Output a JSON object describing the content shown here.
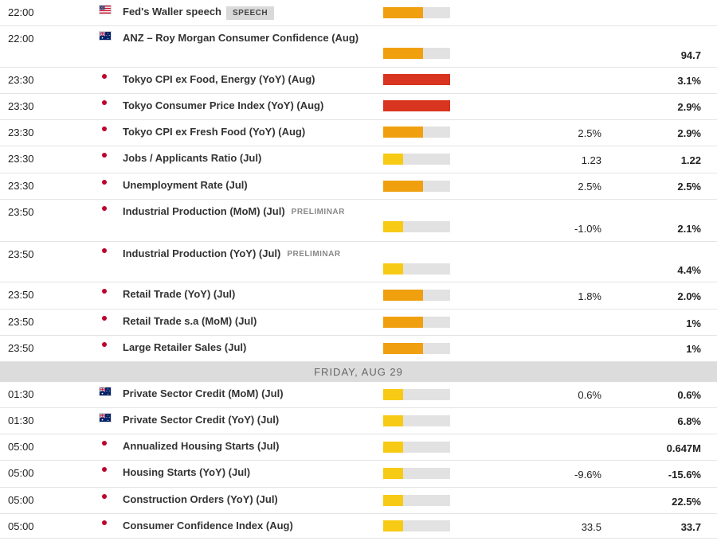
{
  "colors": {
    "high": "#d9341f",
    "medium": "#f0a00f",
    "low": "#f7cb15",
    "empty": "#e2e2e2"
  },
  "day_header": "FRIDAY, AUG 29",
  "events": [
    {
      "time": "22:00",
      "country": "us",
      "country_icon": "us-flag-icon",
      "title": "Fed's Waller speech",
      "badge": "SPEECH",
      "impact": 0.6,
      "actual": "",
      "previous": ""
    },
    {
      "time": "22:00",
      "country": "au",
      "country_icon": "australia-flag-icon",
      "title": "ANZ – Roy Morgan Consumer Confidence (Aug)",
      "badge": "",
      "impact": 0.6,
      "actual": "",
      "previous": "94.7"
    },
    {
      "time": "23:30",
      "country": "jp",
      "country_icon": "japan-flag-icon",
      "title": "Tokyo CPI ex Food, Energy (YoY) (Aug)",
      "badge": "",
      "impact": 1.0,
      "actual": "",
      "previous": "3.1%"
    },
    {
      "time": "23:30",
      "country": "jp",
      "country_icon": "japan-flag-icon",
      "title": "Tokyo Consumer Price Index (YoY) (Aug)",
      "badge": "",
      "impact": 1.0,
      "actual": "",
      "previous": "2.9%"
    },
    {
      "time": "23:30",
      "country": "jp",
      "country_icon": "japan-flag-icon",
      "title": "Tokyo CPI ex Fresh Food (YoY) (Aug)",
      "badge": "",
      "impact": 0.6,
      "actual": "2.5%",
      "previous": "2.9%"
    },
    {
      "time": "23:30",
      "country": "jp",
      "country_icon": "japan-flag-icon",
      "title": "Jobs / Applicants Ratio (Jul)",
      "badge": "",
      "impact": 0.3,
      "actual": "1.23",
      "previous": "1.22"
    },
    {
      "time": "23:30",
      "country": "jp",
      "country_icon": "japan-flag-icon",
      "title": "Unemployment Rate (Jul)",
      "badge": "",
      "impact": 0.6,
      "actual": "2.5%",
      "previous": "2.5%"
    },
    {
      "time": "23:50",
      "country": "jp",
      "country_icon": "japan-flag-icon",
      "title": "Industrial Production (MoM) (Jul)",
      "badge": "PRELIMINAR",
      "impact": 0.3,
      "actual": "-1.0%",
      "previous": "2.1%"
    },
    {
      "time": "23:50",
      "country": "jp",
      "country_icon": "japan-flag-icon",
      "title": "Industrial Production (YoY) (Jul)",
      "badge": "PRELIMINAR",
      "impact": 0.3,
      "actual": "",
      "previous": "4.4%"
    },
    {
      "time": "23:50",
      "country": "jp",
      "country_icon": "japan-flag-icon",
      "title": "Retail Trade (YoY) (Jul)",
      "badge": "",
      "impact": 0.6,
      "actual": "1.8%",
      "previous": "2.0%"
    },
    {
      "time": "23:50",
      "country": "jp",
      "country_icon": "japan-flag-icon",
      "title": "Retail Trade s.a (MoM) (Jul)",
      "badge": "",
      "impact": 0.6,
      "actual": "",
      "previous": "1%"
    },
    {
      "time": "23:50",
      "country": "jp",
      "country_icon": "japan-flag-icon",
      "title": "Large Retailer Sales (Jul)",
      "badge": "",
      "impact": 0.6,
      "actual": "",
      "previous": "1%"
    },
    {
      "time": "01:30",
      "country": "au",
      "country_icon": "australia-flag-icon",
      "title": "Private Sector Credit (MoM) (Jul)",
      "badge": "",
      "impact": 0.3,
      "actual": "0.6%",
      "previous": "0.6%"
    },
    {
      "time": "01:30",
      "country": "au",
      "country_icon": "australia-flag-icon",
      "title": "Private Sector Credit (YoY) (Jul)",
      "badge": "",
      "impact": 0.3,
      "actual": "",
      "previous": "6.8%"
    },
    {
      "time": "05:00",
      "country": "jp",
      "country_icon": "japan-flag-icon",
      "title": "Annualized Housing Starts (Jul)",
      "badge": "",
      "impact": 0.3,
      "actual": "",
      "previous": "0.647M"
    },
    {
      "time": "05:00",
      "country": "jp",
      "country_icon": "japan-flag-icon",
      "title": "Housing Starts (YoY) (Jul)",
      "badge": "",
      "impact": 0.3,
      "actual": "-9.6%",
      "previous": "-15.6%"
    },
    {
      "time": "05:00",
      "country": "jp",
      "country_icon": "japan-flag-icon",
      "title": "Construction Orders (YoY) (Jul)",
      "badge": "",
      "impact": 0.3,
      "actual": "",
      "previous": "22.5%"
    },
    {
      "time": "05:00",
      "country": "jp",
      "country_icon": "japan-flag-icon",
      "title": "Consumer Confidence Index (Aug)",
      "badge": "",
      "impact": 0.3,
      "actual": "33.5",
      "previous": "33.7"
    }
  ]
}
